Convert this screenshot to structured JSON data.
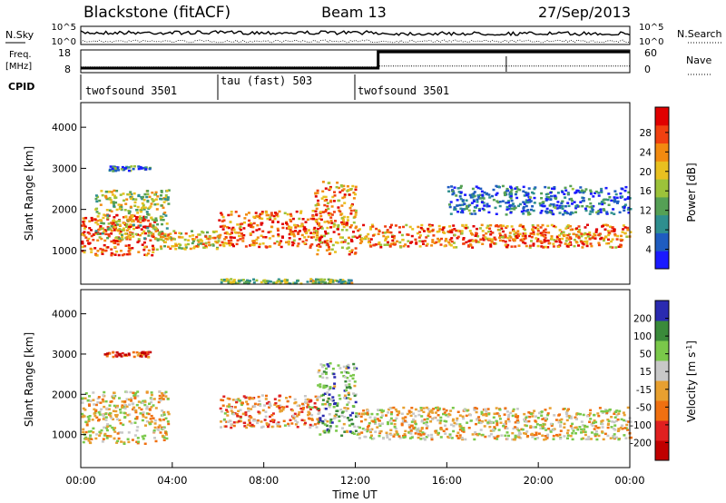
{
  "header": {
    "station": "Blackstone (fitACF)",
    "beam": "Beam 13",
    "date": "27/Sep/2013"
  },
  "chart_data": [
    {
      "type": "line",
      "panel": "noise",
      "left_label": "N.Sky",
      "right_label": "N.Search",
      "left_ticks": [
        "10^5",
        "10^0"
      ],
      "right_ticks": [
        "10^5",
        "10^0"
      ],
      "log_scale": true
    },
    {
      "type": "line",
      "panel": "frequency",
      "left_label_line1": "Freq.",
      "left_label_line2": "[MHz]",
      "right_label": "Nave",
      "left_ticks": [
        "18",
        "8"
      ],
      "right_ticks": [
        "60",
        "0"
      ],
      "freq_mhz": [
        [
          0,
          10.5
        ],
        [
          13.0,
          10.5
        ],
        [
          13.0,
          10.9
        ],
        [
          24,
          10.9
        ]
      ],
      "nave": [
        [
          0,
          12
        ],
        [
          13.0,
          12
        ],
        [
          13.0,
          55
        ],
        [
          24,
          55
        ]
      ]
    },
    {
      "type": "table",
      "panel": "cpid",
      "label": "CPID",
      "segments": [
        {
          "start_hr": 0,
          "end_hr": 6,
          "name": "twofsound 3501"
        },
        {
          "start_hr": 6,
          "end_hr": 12,
          "name": "tau (fast) 503"
        },
        {
          "start_hr": 12,
          "end_hr": 24,
          "name": "twofsound 3501"
        }
      ]
    },
    {
      "type": "heatmap",
      "panel": "power",
      "ylabel": "Slant Range [km]",
      "ylim": [
        180,
        4600
      ],
      "yticks": [
        "1000",
        "2000",
        "3000",
        "4000"
      ],
      "colorbar_label": "Power [dB]",
      "colorbar_ticks": [
        "4",
        "8",
        "12",
        "16",
        "20",
        "24",
        "28"
      ],
      "colors": [
        "#1a1aff",
        "#1f5cc0",
        "#2f8f8f",
        "#55a055",
        "#9cc23a",
        "#e8c020",
        "#f28a10",
        "#f04010",
        "#e00000"
      ],
      "bands": [
        {
          "t0": 0.0,
          "t1": 3.3,
          "r0": 900,
          "r1": 1900,
          "level": 0.85
        },
        {
          "t0": 0.6,
          "t1": 3.8,
          "r0": 1300,
          "r1": 2500,
          "level": 0.5
        },
        {
          "t0": 1.2,
          "t1": 3.0,
          "r0": 2950,
          "r1": 3080,
          "level": 0.3
        },
        {
          "t0": 3.0,
          "t1": 6.0,
          "r0": 1050,
          "r1": 1500,
          "level": 0.6
        },
        {
          "t0": 6.0,
          "t1": 10.5,
          "r0": 1100,
          "r1": 2000,
          "level": 0.8
        },
        {
          "t0": 10.2,
          "t1": 12.0,
          "r0": 900,
          "r1": 2700,
          "level": 0.7
        },
        {
          "t0": 12.0,
          "t1": 24.0,
          "r0": 1100,
          "r1": 1650,
          "level": 0.75
        },
        {
          "t0": 6.0,
          "t1": 12.0,
          "r0": 220,
          "r1": 330,
          "level": 0.45
        },
        {
          "t0": 16.0,
          "t1": 24.0,
          "r0": 1900,
          "r1": 2600,
          "level": 0.2
        }
      ]
    },
    {
      "type": "heatmap",
      "panel": "velocity",
      "ylabel": "Slant Range [km]",
      "ylim": [
        180,
        4600
      ],
      "yticks": [
        "1000",
        "2000",
        "3000",
        "4000"
      ],
      "xlabel": "Time UT",
      "xticks": [
        "00:00",
        "04:00",
        "08:00",
        "12:00",
        "16:00",
        "20:00",
        "00:00"
      ],
      "xlim_hours": [
        0,
        24
      ],
      "colorbar_label_main": "Velocity [m s",
      "colorbar_label_sup": "-1",
      "colorbar_label_end": "]",
      "colorbar_ticks": [
        "200",
        "100",
        "50",
        "15",
        "-15",
        "-50",
        "-100",
        "-200"
      ],
      "colors": [
        "#2a2ab0",
        "#3a8a3a",
        "#7ac84a",
        "#c8c8c8",
        "#e8a030",
        "#f07010",
        "#e02020",
        "#c00000"
      ],
      "bands": [
        {
          "t0": 0.0,
          "t1": 3.8,
          "r0": 800,
          "r1": 2100,
          "level": 0.5
        },
        {
          "t0": 6.0,
          "t1": 10.4,
          "r0": 1200,
          "r1": 2000,
          "level": 0.6
        },
        {
          "t0": 10.3,
          "t1": 12.0,
          "r0": 1000,
          "r1": 2800,
          "level": 0.3
        },
        {
          "t0": 12.0,
          "t1": 24.0,
          "r0": 900,
          "r1": 1700,
          "level": 0.5
        },
        {
          "t0": 1.0,
          "t1": 3.0,
          "r0": 2950,
          "r1": 3080,
          "level": 0.8
        }
      ]
    }
  ]
}
